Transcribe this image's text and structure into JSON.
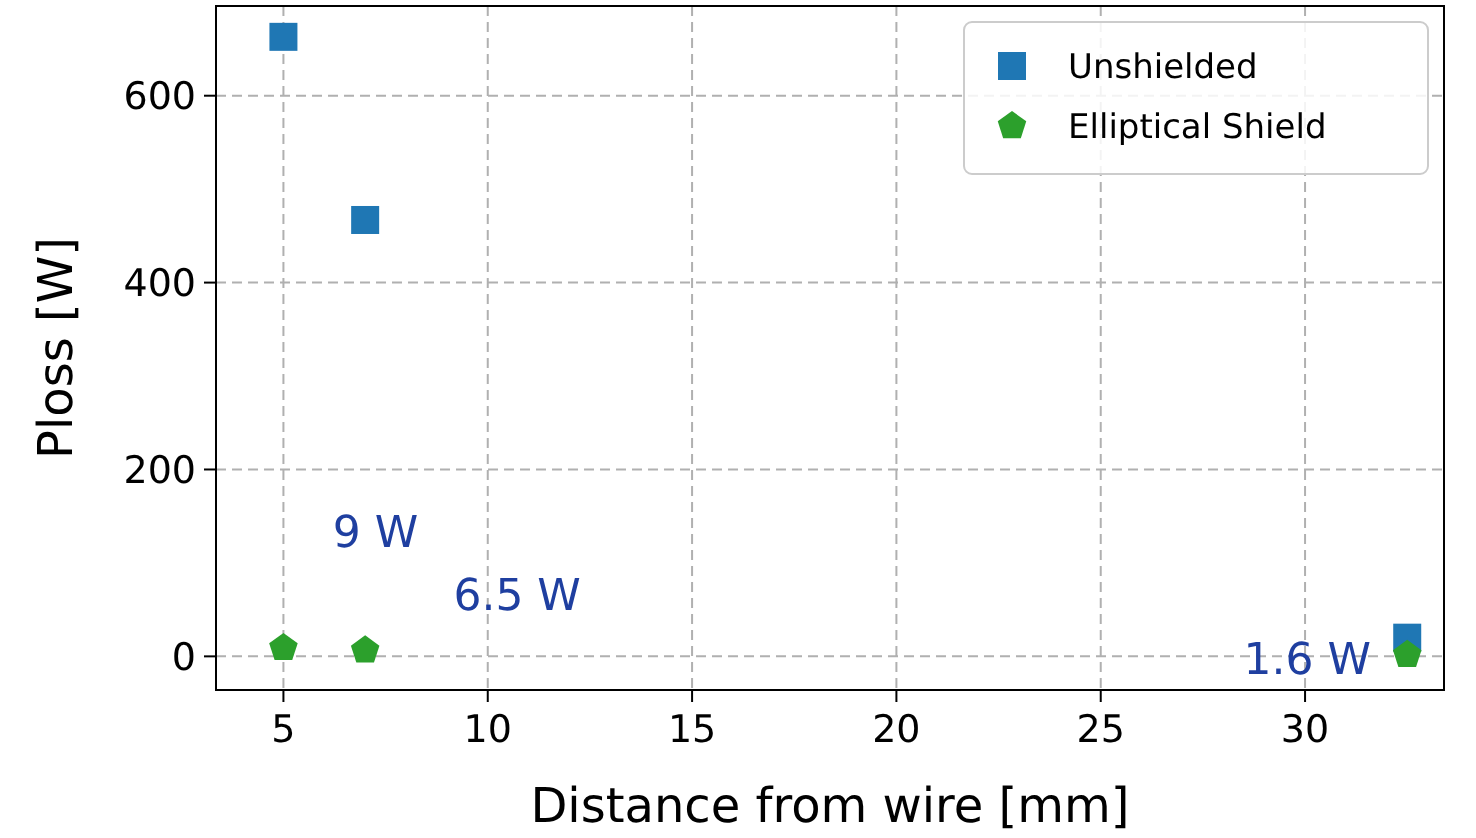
{
  "chart_data": {
    "type": "scatter",
    "xlabel": "Distance from wire [mm]",
    "ylabel": "Ploss [W]",
    "xlim": [
      3.35,
      33.4
    ],
    "ylim": [
      -36,
      696
    ],
    "xticks": [
      5,
      10,
      15,
      20,
      25,
      30
    ],
    "yticks": [
      0,
      200,
      400,
      600
    ],
    "grid": true,
    "legend": "top right",
    "series": [
      {
        "name": "Unshielded",
        "color": "#1f77b4",
        "marker": "square",
        "x": [
          5,
          7,
          32.5
        ],
        "values": [
          663,
          467,
          20
        ]
      },
      {
        "name": "Elliptical Shield",
        "color": "#2ca02c",
        "x": [
          5,
          7,
          32.5
        ],
        "values": [
          9,
          6.5,
          1.6
        ]
      }
    ],
    "annotations": [
      {
        "text": "9 W",
        "x": 5,
        "y": 9
      },
      {
        "text": "6.5 W",
        "x": 7,
        "y": 6.5
      },
      {
        "text": "1.6 W",
        "x": 32.5,
        "y": 1.6
      }
    ]
  }
}
